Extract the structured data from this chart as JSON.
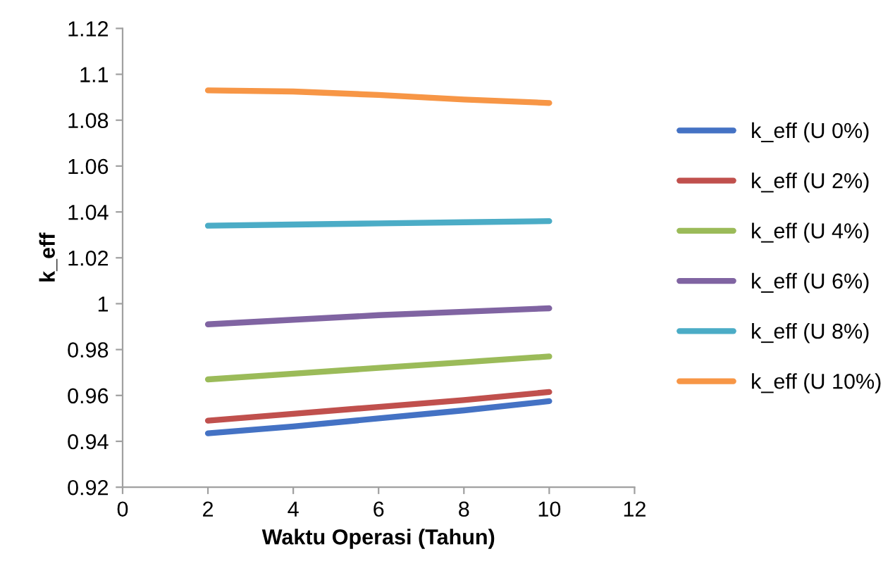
{
  "chart_data": {
    "type": "line",
    "xlabel": "Waktu Operasi (Tahun)",
    "ylabel": "k_eff",
    "x": [
      2,
      4,
      6,
      8,
      10
    ],
    "series": [
      {
        "name": "k_eff (U 0%)",
        "color": "#4472c4",
        "values": [
          0.9435,
          0.9465,
          0.95,
          0.9535,
          0.9575
        ]
      },
      {
        "name": "k_eff (U 2%)",
        "color": "#c0504d",
        "values": [
          0.949,
          0.952,
          0.955,
          0.958,
          0.9615
        ]
      },
      {
        "name": "k_eff (U 4%)",
        "color": "#9bbb59",
        "values": [
          0.967,
          0.9695,
          0.972,
          0.9745,
          0.977
        ]
      },
      {
        "name": "k_eff (U 6%)",
        "color": "#8064a2",
        "values": [
          0.991,
          0.993,
          0.995,
          0.9965,
          0.998
        ]
      },
      {
        "name": "k_eff (U 8%)",
        "color": "#4bacc6",
        "values": [
          1.034,
          1.0345,
          1.035,
          1.0355,
          1.036
        ]
      },
      {
        "name": "k_eff (U 10%)",
        "color": "#f79646",
        "values": [
          1.093,
          1.0925,
          1.091,
          1.089,
          1.0875
        ]
      }
    ],
    "xlim": [
      0,
      12
    ],
    "xticks": [
      0,
      2,
      4,
      6,
      8,
      10,
      12
    ],
    "ylim": [
      0.92,
      1.12
    ],
    "yticks": [
      0.92,
      0.94,
      0.96,
      0.98,
      1,
      1.02,
      1.04,
      1.06,
      1.08,
      1.1,
      1.12
    ],
    "grid": false,
    "legend": "right",
    "marker": "none",
    "line_style": "solid"
  }
}
